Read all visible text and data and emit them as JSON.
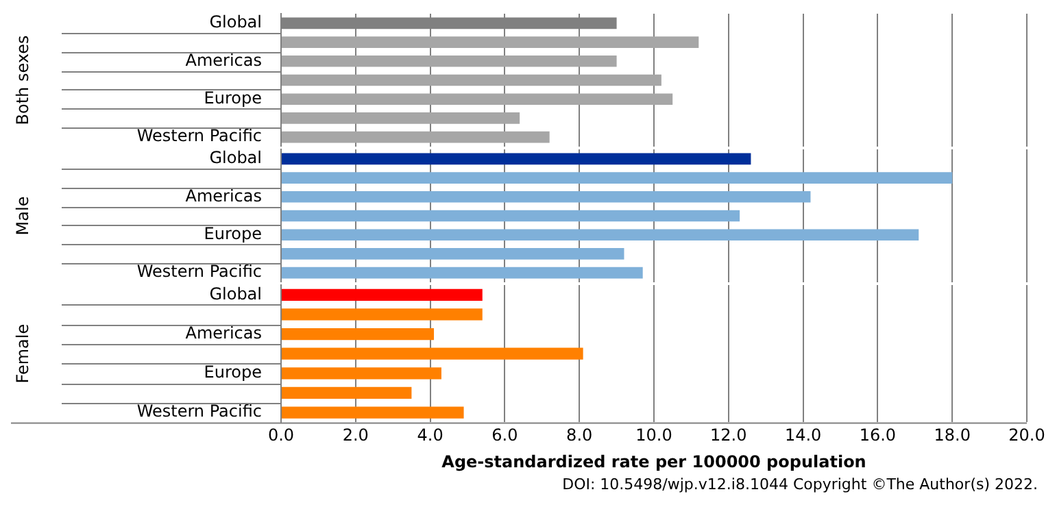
{
  "chart_data": [
    {
      "type": "bar",
      "orientation": "horizontal",
      "ylabel": "Both sexes",
      "categories": [
        "Global",
        null,
        "Americas",
        null,
        "Europe",
        null,
        "Western Pacific"
      ],
      "values": [
        9.0,
        11.2,
        9.0,
        10.2,
        10.5,
        6.4,
        7.2
      ],
      "colors": [
        "#808080",
        "#a6a6a6",
        "#a6a6a6",
        "#a6a6a6",
        "#a6a6a6",
        "#a6a6a6",
        "#a6a6a6"
      ],
      "xlim": [
        0,
        20
      ],
      "xticks": [
        0,
        2,
        4,
        6,
        8,
        10,
        12,
        14,
        16,
        18,
        20
      ],
      "grid": "x",
      "tick_labels": "y"
    },
    {
      "type": "bar",
      "orientation": "horizontal",
      "ylabel": "Male",
      "categories": [
        "Global",
        null,
        "Americas",
        null,
        "Europe",
        null,
        "Western Pacific"
      ],
      "values": [
        12.6,
        18.0,
        14.2,
        12.3,
        17.1,
        9.2,
        9.7
      ],
      "colors": [
        "#002f9a",
        "#7fb0d9",
        "#7fb0d9",
        "#7fb0d9",
        "#7fb0d9",
        "#7fb0d9",
        "#7fb0d9"
      ],
      "xlim": [
        0,
        20
      ],
      "xticks": [
        0,
        2,
        4,
        6,
        8,
        10,
        12,
        14,
        16,
        18,
        20
      ],
      "grid": "x",
      "tick_labels": "y"
    },
    {
      "type": "bar",
      "orientation": "horizontal",
      "ylabel": "Female",
      "xlabel": "Age-standardized rate per 100000 population",
      "categories": [
        "Global",
        null,
        "Americas",
        null,
        "Europe",
        null,
        "Western Pacific"
      ],
      "values": [
        5.4,
        5.4,
        4.1,
        8.1,
        4.3,
        3.5,
        4.9
      ],
      "colors": [
        "#ff0000",
        "#ff8000",
        "#ff8000",
        "#ff8000",
        "#ff8000",
        "#ff8000",
        "#ff8000"
      ],
      "xlim": [
        0,
        20
      ],
      "xticks": [
        {
          "value": 0,
          "label": "0.0"
        },
        {
          "value": 2,
          "label": "2.0"
        },
        {
          "value": 4,
          "label": "4.0"
        },
        {
          "value": 6,
          "label": "6.0"
        },
        {
          "value": 8,
          "label": "8.0"
        },
        {
          "value": 10,
          "label": "10.0"
        },
        {
          "value": 12,
          "label": "12.0"
        },
        {
          "value": 14,
          "label": "14.0"
        },
        {
          "value": 16,
          "label": "16.0"
        },
        {
          "value": 18,
          "label": "18.0"
        },
        {
          "value": 20,
          "label": "20.0"
        }
      ],
      "grid": "x",
      "annotations": [
        "DOI: 10.5498/wjp.v12.i8.1044 Copyright ©The Author(s) 2022."
      ]
    }
  ]
}
